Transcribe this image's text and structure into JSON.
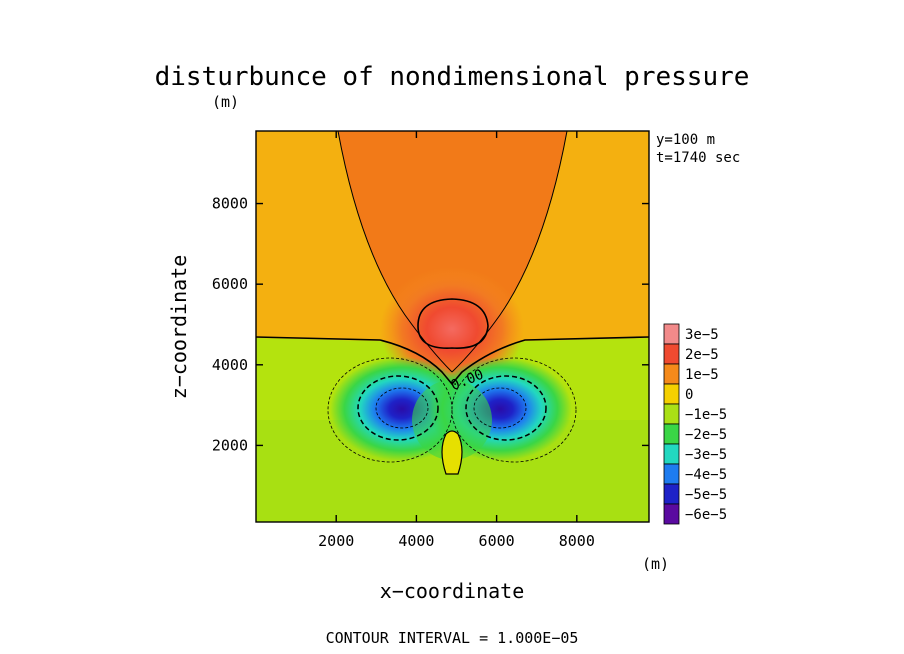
{
  "chart_data": {
    "type": "heatmap",
    "title": "disturbunce of nondimensional pressure",
    "y_unit": "(m)",
    "x_unit": "(m)",
    "xlabel": "x−coordinate",
    "ylabel": "z−coordinate",
    "info": [
      "y=100 m",
      "t=1740 sec"
    ],
    "footer": "CONTOUR INTERVAL = 1.000E−05",
    "xlim": [
      0,
      9800
    ],
    "ylim": [
      100,
      9800
    ],
    "x_ticks": [
      2000,
      4000,
      6000,
      8000
    ],
    "y_ticks": [
      2000,
      4000,
      6000,
      8000
    ],
    "x_tick_labels": [
      "2000",
      "4000",
      "6000",
      "8000"
    ],
    "y_tick_labels": [
      "2000",
      "4000",
      "6000",
      "8000"
    ],
    "contour_label": "0.00",
    "colorbar": {
      "levels": [
        {
          "label": "3e−5",
          "value": 3e-05,
          "color": "#f28a8a"
        },
        {
          "label": "2e−5",
          "value": 2e-05,
          "color": "#f04a30"
        },
        {
          "label": "1e−5",
          "value": 1e-05,
          "color": "#f58a1a"
        },
        {
          "label": "0",
          "value": 0,
          "color": "#f5d000"
        },
        {
          "label": "−1e−5",
          "value": -1e-05,
          "color": "#aae016"
        },
        {
          "label": "−2e−5",
          "value": -2e-05,
          "color": "#3ad646"
        },
        {
          "label": "−3e−5",
          "value": -3e-05,
          "color": "#22d8c0"
        },
        {
          "label": "−4e−5",
          "value": -4e-05,
          "color": "#1e7cf0"
        },
        {
          "label": "−5e−5",
          "value": -5e-05,
          "color": "#1e22c8"
        },
        {
          "label": "−6e−5",
          "value": -6e-05,
          "color": "#5a0aa0"
        }
      ]
    },
    "features": [
      {
        "type": "high",
        "x": 5000,
        "z": 5000,
        "value": 3e-05
      },
      {
        "type": "low",
        "x": 3750,
        "z": 2850,
        "value": -6e-05
      },
      {
        "type": "low",
        "x": 6250,
        "z": 2850,
        "value": -6e-05
      },
      {
        "type": "zero_line_z",
        "value": 4800
      }
    ]
  }
}
